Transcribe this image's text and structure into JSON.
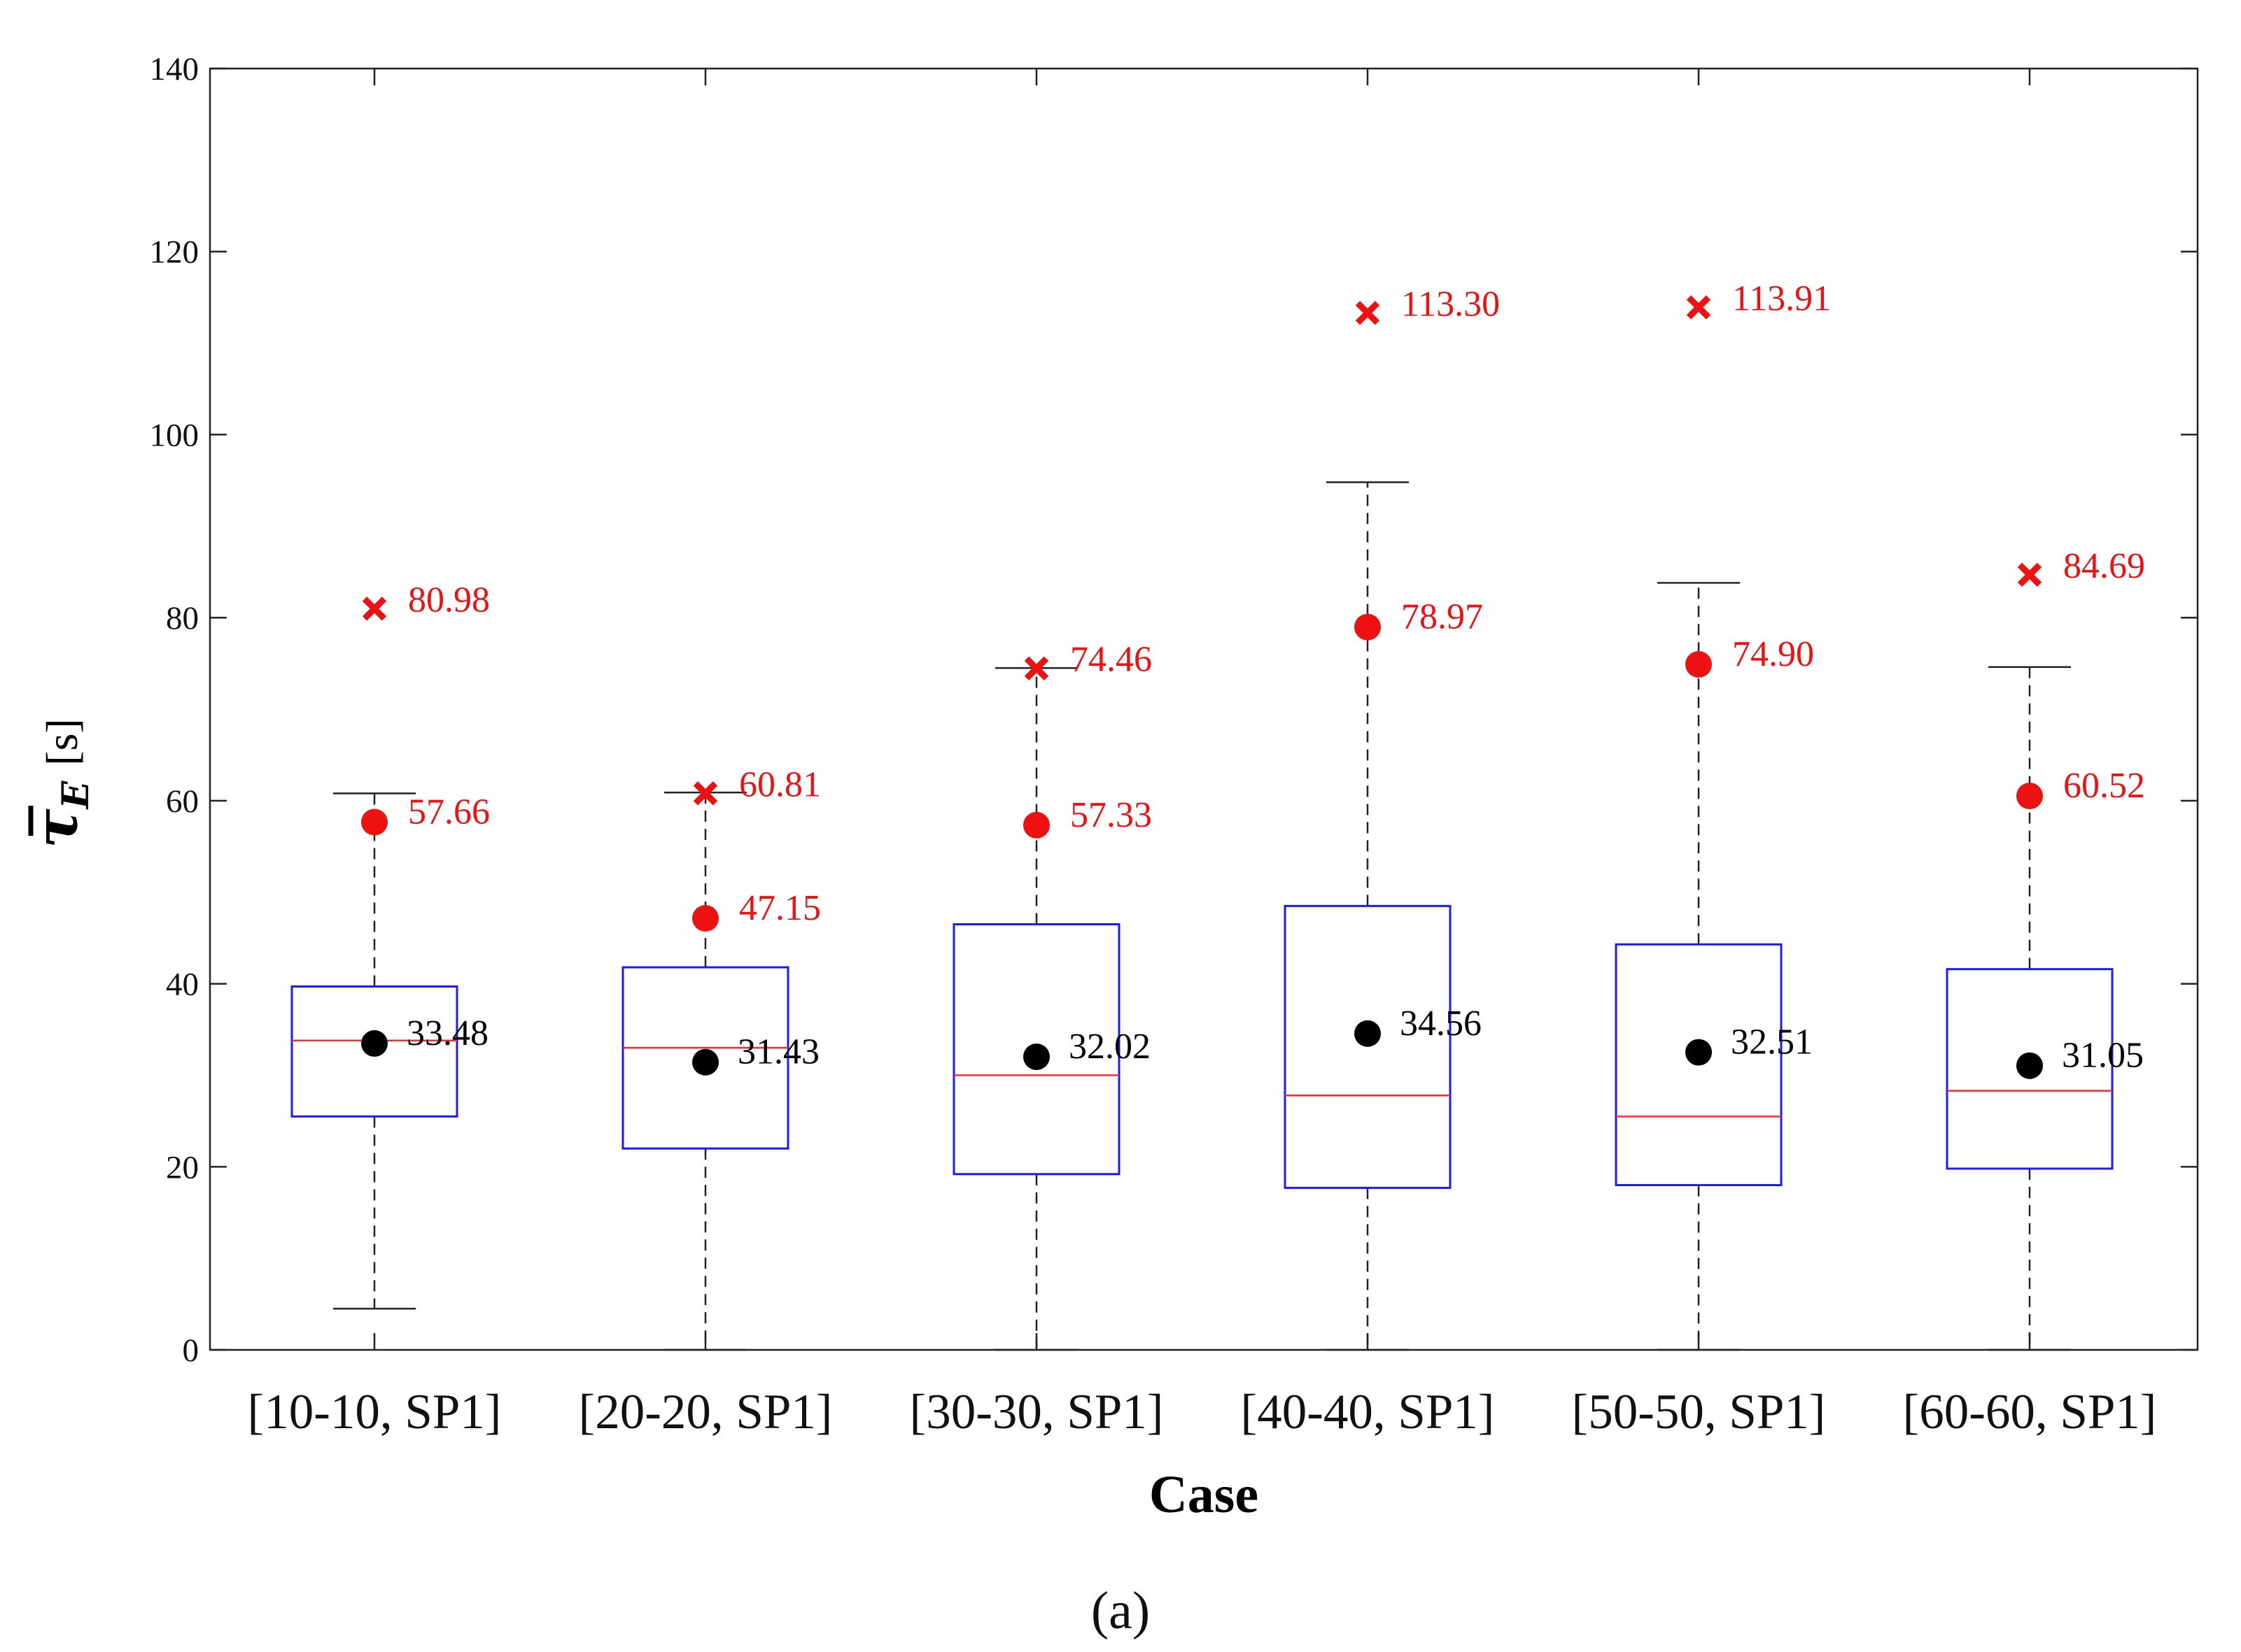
{
  "chart_data": {
    "type": "box",
    "xlabel": "Case",
    "ylabel_symbol": "τ",
    "ylabel_subscript": "E",
    "ylabel_unit": "[s]",
    "panel_label": "(a)",
    "ylim": [
      0,
      140
    ],
    "yticks": [
      0,
      20,
      40,
      60,
      80,
      100,
      120,
      140
    ],
    "categories": [
      "[10-10, SP1]",
      "[20-20, SP1]",
      "[30-30, SP1]",
      "[40-40, SP1]",
      "[50-50, SP1]",
      "[60-60, SP1]"
    ],
    "boxes": [
      {
        "whisker_low": 4.5,
        "q1": 25.5,
        "median": 33.8,
        "q3": 39.7,
        "whisker_high": 60.8
      },
      {
        "whisker_low": 0,
        "q1": 22.0,
        "median": 33.0,
        "q3": 41.8,
        "whisker_high": 60.9
      },
      {
        "whisker_low": 0,
        "q1": 19.2,
        "median": 30.0,
        "q3": 46.5,
        "whisker_high": 74.5
      },
      {
        "whisker_low": 0,
        "q1": 17.7,
        "median": 27.8,
        "q3": 48.5,
        "whisker_high": 94.8
      },
      {
        "whisker_low": 0,
        "q1": 18.0,
        "median": 25.5,
        "q3": 44.3,
        "whisker_high": 83.8
      },
      {
        "whisker_low": 0,
        "q1": 19.8,
        "median": 28.3,
        "q3": 41.6,
        "whisker_high": 74.6
      }
    ],
    "mean": {
      "values": [
        33.48,
        31.43,
        32.02,
        34.56,
        32.51,
        31.05
      ],
      "labels": [
        "33.48",
        "31.43",
        "32.02",
        "34.56",
        "32.51",
        "31.05"
      ]
    },
    "p95": {
      "values": [
        57.66,
        47.15,
        57.33,
        78.97,
        74.9,
        60.52
      ],
      "labels": [
        "57.66",
        "47.15",
        "57.33",
        "78.97",
        "74.90",
        "60.52"
      ]
    },
    "max": {
      "values": [
        80.98,
        60.81,
        74.46,
        113.3,
        113.91,
        84.69
      ],
      "labels": [
        "80.98",
        "60.81",
        "74.46",
        "113.30",
        "113.91",
        "84.69"
      ]
    },
    "colors": {
      "box": "#1a1aff",
      "median": "#ff2a2a",
      "whisker": "#222222",
      "mean_marker": "#000000",
      "red_marker": "#ee1111",
      "axis": "#222222"
    }
  }
}
